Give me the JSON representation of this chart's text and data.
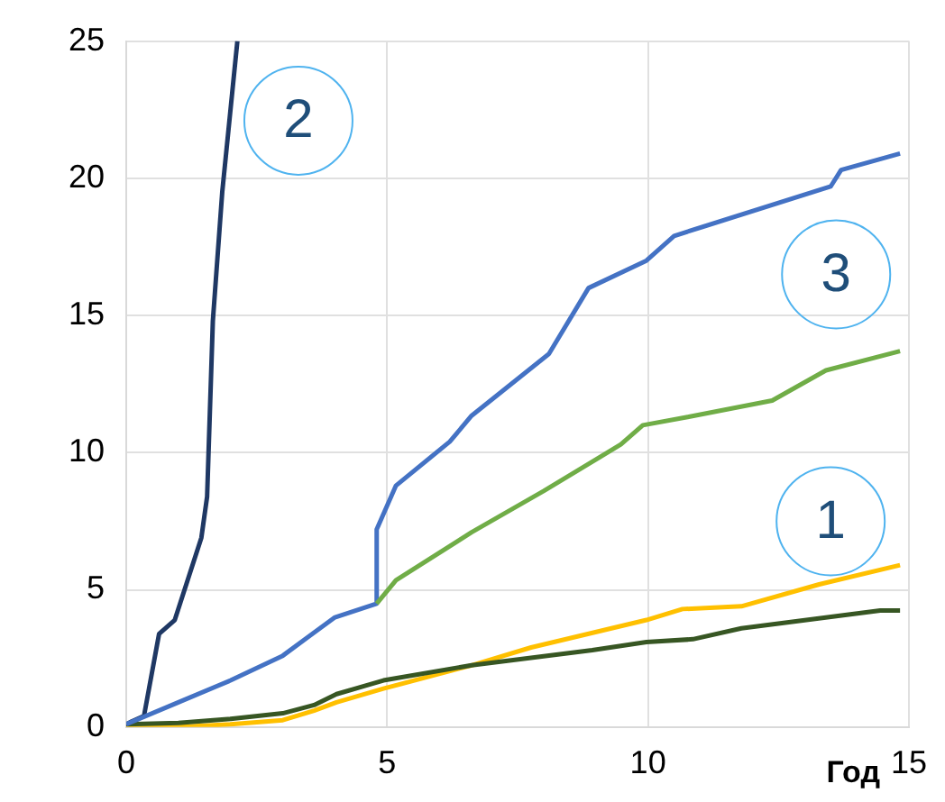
{
  "chart_data": {
    "type": "line",
    "xlabel": "Год",
    "xlim": [
      0,
      15
    ],
    "xticks": [
      0,
      5,
      10,
      15
    ],
    "ylim": [
      0,
      25
    ],
    "yticks": [
      0,
      5,
      10,
      15,
      20,
      25
    ],
    "grid": true,
    "legend": false,
    "marker": "none",
    "line_style": "solid",
    "series": [
      {
        "color": "#ffc000",
        "x": [
          0,
          1,
          2,
          3,
          3.6,
          4.03,
          4.93,
          6.62,
          7.76,
          9.97,
          10.66,
          11.79,
          13.28,
          14.83
        ],
        "values": [
          0,
          0,
          0.1,
          0.25,
          0.6,
          0.9,
          1.4,
          2.25,
          2.9,
          3.9,
          4.3,
          4.4,
          5.2,
          5.9
        ]
      },
      {
        "color": "#375623",
        "x": [
          0,
          1,
          2,
          3,
          3.6,
          4.03,
          4.93,
          6.62,
          8.93,
          9.97,
          10.86,
          11.79,
          14.45,
          14.83
        ],
        "values": [
          0.1,
          0.15,
          0.3,
          0.5,
          0.8,
          1.2,
          1.7,
          2.25,
          2.8,
          3.1,
          3.2,
          3.6,
          4.25,
          4.25
        ]
      },
      {
        "color": "#1f3864",
        "x": [
          0,
          0.1,
          0.34,
          0.63,
          0.93,
          1.44,
          1.55,
          1.66,
          1.84,
          2.13
        ],
        "values": [
          0.1,
          0.2,
          0.4,
          3.4,
          3.9,
          6.9,
          8.4,
          14.8,
          19.5,
          25
        ]
      },
      {
        "color": "#4472c4",
        "x": [
          0,
          1,
          2,
          3,
          3.5,
          4,
          4.8,
          4.8,
          5.17,
          6.2,
          6.62,
          8.1,
          8.86,
          9.97,
          10.5,
          13.5,
          13.7,
          14.83
        ],
        "values": [
          0.1,
          0.9,
          1.7,
          2.6,
          3.3,
          4,
          4.5,
          7.2,
          8.8,
          10.4,
          11.35,
          13.6,
          16.0,
          17.0,
          17.9,
          19.7,
          20.3,
          20.9
        ]
      },
      {
        "color": "#70ad47",
        "x": [
          4.8,
          5.17,
          6.62,
          8.0,
          9.48,
          9.9,
          10.76,
          12.38,
          13.41,
          14.83
        ],
        "values": [
          4.5,
          5.35,
          7.1,
          8.6,
          10.3,
          11.0,
          11.3,
          11.9,
          13.0,
          13.7
        ]
      }
    ],
    "annotations": [
      "2",
      "3",
      "1"
    ]
  }
}
